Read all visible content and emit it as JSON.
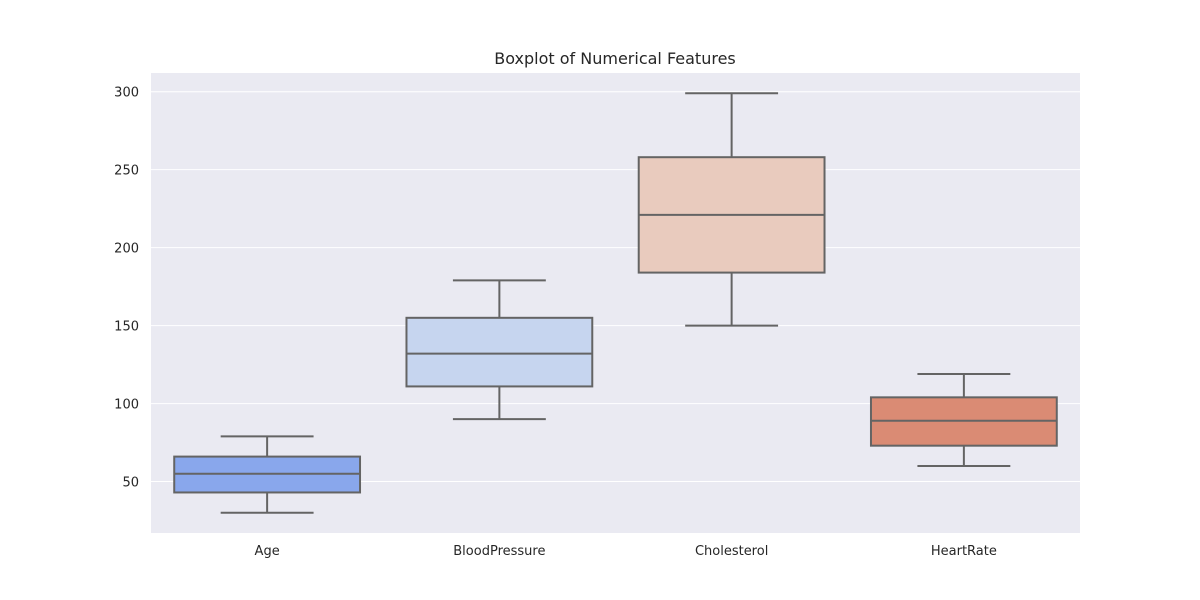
{
  "chart_data": {
    "type": "boxplot",
    "title": "Boxplot of Numerical Features",
    "xlabel": "",
    "ylabel": "",
    "categories": [
      "Age",
      "BloodPressure",
      "Cholesterol",
      "HeartRate"
    ],
    "ylim": [
      17,
      312
    ],
    "yticks": [
      50,
      100,
      150,
      200,
      250,
      300
    ],
    "grid": true,
    "boxes": [
      {
        "category": "Age",
        "whisker_low": 30,
        "q1": 43,
        "median": 55,
        "q3": 66,
        "whisker_high": 79,
        "color": "#89a7ec"
      },
      {
        "category": "BloodPressure",
        "whisker_low": 90,
        "q1": 111,
        "median": 132,
        "q3": 155,
        "whisker_high": 179,
        "color": "#c6d5ef"
      },
      {
        "category": "Cholesterol",
        "whisker_low": 150,
        "q1": 184,
        "median": 221,
        "q3": 258,
        "whisker_high": 299,
        "color": "#e9cbbe"
      },
      {
        "category": "HeartRate",
        "whisker_low": 60,
        "q1": 73,
        "median": 89,
        "q3": 104,
        "whisker_high": 119,
        "color": "#da8b74"
      }
    ],
    "colors": {
      "plot_background": "#eaeaf2",
      "grid": "#ffffff",
      "box_edge": "#646464",
      "text": "#262626"
    }
  }
}
